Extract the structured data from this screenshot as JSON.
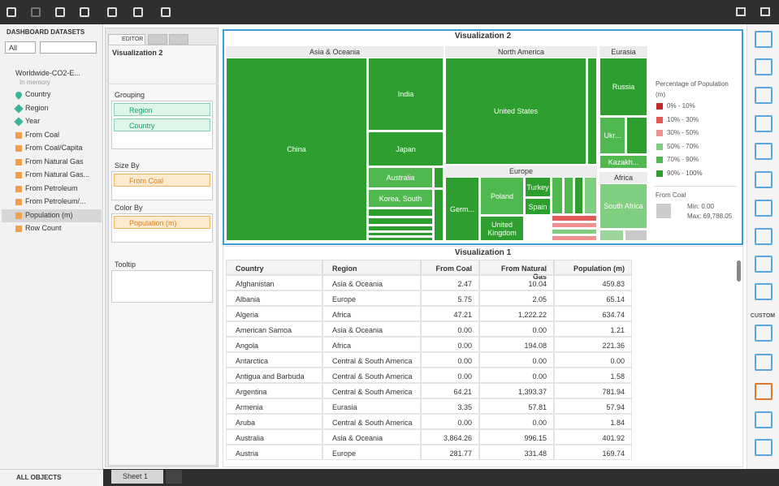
{
  "datasets": {
    "header": "DASHBOARD DATASETS",
    "filter": "All",
    "name": "Worldwide-CO2-E...",
    "status": "In memory",
    "fields": [
      "Country",
      "Region",
      "Year",
      "From Coal",
      "From Coal/Capita",
      "From Natural Gas",
      "From Natural Gas...",
      "From Petroleum",
      "From Petroleum/...",
      "Population (m)",
      "Row Count"
    ],
    "footer": "ALL OBJECTS"
  },
  "editor": {
    "tab": "EDITOR",
    "visualization": "Visualization 2",
    "sections": [
      {
        "title": "Grouping",
        "items": [
          "Region",
          "Country"
        ]
      },
      {
        "title": "Size By",
        "items": [
          "From Coal"
        ]
      },
      {
        "title": "Color By",
        "items": [
          "Population (m)"
        ]
      },
      {
        "title": "Tooltip"
      }
    ]
  },
  "treemap": {
    "title": "Visualization 2",
    "regions": [
      "Asia & Oceania",
      "North America",
      "Eurasia",
      "Europe",
      "Africa"
    ],
    "countries": [
      "China",
      "India",
      "Japan",
      "Australia",
      "Korea, South",
      "United States",
      "Germ...",
      "Poland",
      "Turkey",
      "Spain",
      "United Kingdom",
      "Russia",
      "Ukr...",
      "Kazakh...",
      "South Africa"
    ],
    "legend_title": "Percentage of Population (m)",
    "legend": [
      {
        "label": "0% - 10%",
        "color": "#c6282d"
      },
      {
        "label": "10% - 30%",
        "color": "#e05a5a"
      },
      {
        "label": "30% - 50%",
        "color": "#ee9292"
      },
      {
        "label": "50% - 70%",
        "color": "#80cf80"
      },
      {
        "label": "70% - 90%",
        "color": "#4fb94f"
      },
      {
        "label": "90% - 100%",
        "color": "#2e9e2e"
      }
    ],
    "size_title": "From Coal",
    "size_min": "Min: 0.00",
    "size_max": "Max: 69,788.05"
  },
  "table": {
    "title": "Visualization 1",
    "columns": [
      "Country",
      "Region",
      "From Coal",
      "From Natural Gas",
      "Population (m)"
    ],
    "rows": [
      [
        "Afghanistan",
        "Asia & Oceania",
        "2.47",
        "10.04",
        "459.83"
      ],
      [
        "Albania",
        "Europe",
        "5.75",
        "2.05",
        "65.14"
      ],
      [
        "Algeria",
        "Africa",
        "47.21",
        "1,222.22",
        "634.74"
      ],
      [
        "American Samoa",
        "Asia & Oceania",
        "0.00",
        "0.00",
        "1.21"
      ],
      [
        "Angola",
        "Africa",
        "0.00",
        "194.08",
        "221.36"
      ],
      [
        "Antarctica",
        "Central & South America",
        "0.00",
        "0.00",
        "0.00"
      ],
      [
        "Antigua and Barbuda",
        "Central & South America",
        "0.00",
        "0.00",
        "1.58"
      ],
      [
        "Argentina",
        "Central & South America",
        "64.21",
        "1,393.37",
        "781.94"
      ],
      [
        "Armenia",
        "Eurasia",
        "3.35",
        "57.81",
        "57.94"
      ],
      [
        "Aruba",
        "Central & South America",
        "0.00",
        "0.00",
        "1.84"
      ],
      [
        "Australia",
        "Asia & Oceania",
        "3,864.26",
        "996.15",
        "401.92"
      ],
      [
        "Austria",
        "Europe",
        "281.77",
        "331.48",
        "169.74"
      ]
    ]
  },
  "sheet": "Sheet 1",
  "palette_heading": "CUSTOM"
}
